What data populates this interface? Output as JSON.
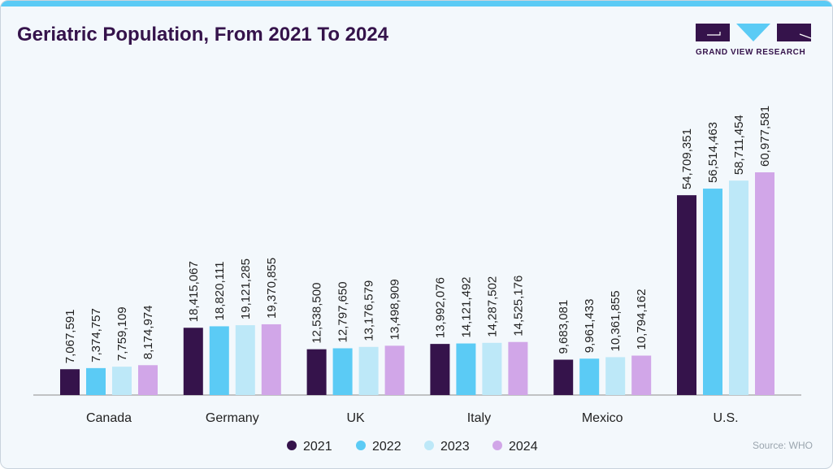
{
  "title": "Geriatric Population, From 2021 To 2024",
  "logo_text": "GRAND VIEW RESEARCH",
  "source": "Source: WHO",
  "chart_data": {
    "type": "bar",
    "title": "Geriatric Population, From 2021 To 2024",
    "xlabel": "",
    "ylabel": "",
    "grid": false,
    "legend_position": "bottom",
    "categories": [
      "Canada",
      "Germany",
      "UK",
      "Italy",
      "Mexico",
      "U.S."
    ],
    "series": [
      {
        "name": "2021",
        "color": "#35134b",
        "values": [
          7067591,
          18415067,
          12538500,
          13992076,
          9683081,
          54709351
        ]
      },
      {
        "name": "2022",
        "color": "#5bcbf5",
        "values": [
          7374757,
          18820111,
          12797650,
          14121492,
          9961433,
          56514463
        ]
      },
      {
        "name": "2023",
        "color": "#bde8f8",
        "values": [
          7759109,
          19121285,
          13176579,
          14287502,
          10361855,
          58711454
        ]
      },
      {
        "name": "2024",
        "color": "#d1a6e8",
        "values": [
          8174974,
          19370855,
          13498909,
          14525176,
          10794162,
          60977581
        ]
      }
    ],
    "data_labels": [
      [
        "7,067,591",
        "18,415,067",
        "12,538,500",
        "13,992,076",
        "9,683,081",
        "54,709,351"
      ],
      [
        "7,374,757",
        "18,820,111",
        "12,797,650",
        "14,121,492",
        "9,961,433",
        "56,514,463"
      ],
      [
        "7,759,109",
        "19,121,285",
        "13,176,579",
        "14,287,502",
        "10,361,855",
        "58,711,454"
      ],
      [
        "8,174,974",
        "19,370,855",
        "13,498,909",
        "14,525,176",
        "10,794,162",
        "60,977,581"
      ]
    ]
  }
}
